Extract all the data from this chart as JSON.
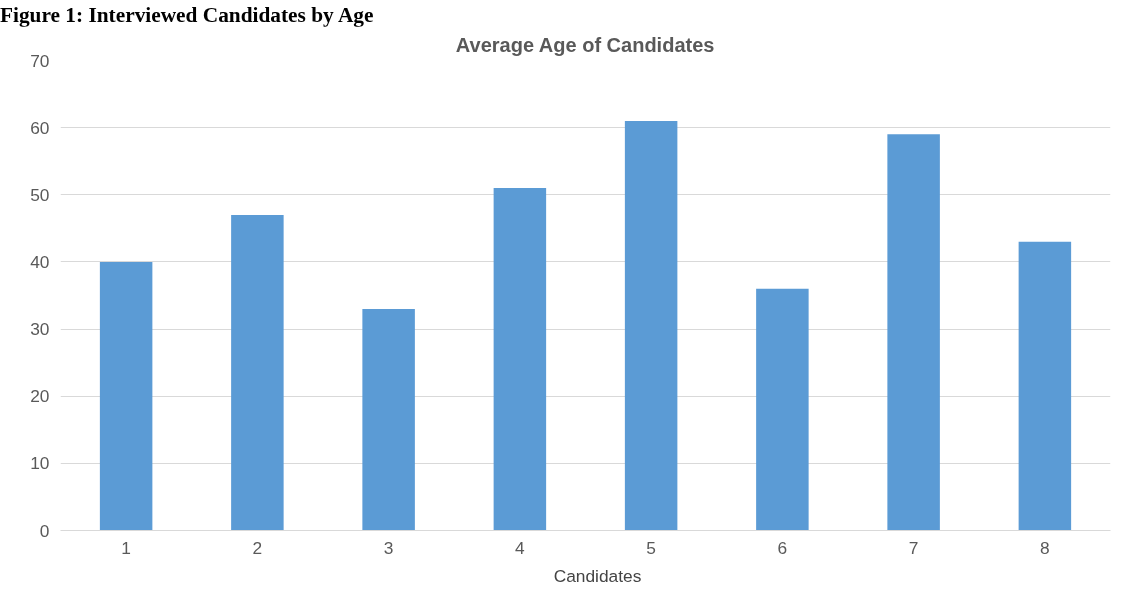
{
  "chart_data": {
    "type": "bar",
    "title": "Average Age of Candidates",
    "annotations": [
      "Figure 1: Interviewed Candidates by Age"
    ],
    "categories": [
      "1",
      "2",
      "3",
      "4",
      "5",
      "6",
      "7",
      "8"
    ],
    "series": [
      {
        "name": "Candidates",
        "color": "#5b9bd5",
        "values": [
          40,
          47,
          33,
          51,
          61,
          36,
          59,
          43
        ]
      }
    ],
    "ylim": [
      0,
      70
    ],
    "yticks": [
      0,
      10,
      20,
      30,
      40,
      50,
      60,
      70
    ],
    "grid": "y",
    "legend": "bottom"
  }
}
